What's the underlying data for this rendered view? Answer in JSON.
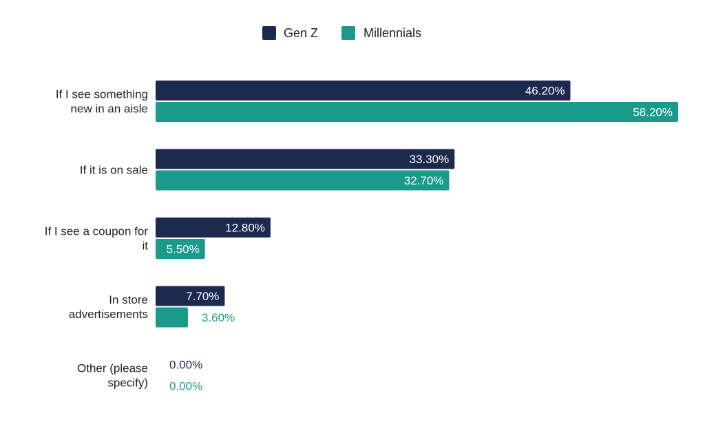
{
  "chart_data": {
    "type": "bar",
    "orientation": "horizontal",
    "categories": [
      [
        "If I see something",
        "new in an aisle"
      ],
      [
        "If it is on sale"
      ],
      [
        "If I see a coupon for",
        "it"
      ],
      [
        "In store",
        "advertisements"
      ],
      [
        "Other (please",
        "specify)"
      ]
    ],
    "series": [
      {
        "name": "Gen Z",
        "color": "#1b2a4e",
        "values": [
          46.2,
          33.3,
          12.8,
          7.7,
          0.0
        ],
        "labels": [
          "46.20%",
          "33.30%",
          "12.80%",
          "7.70%",
          "0.00%"
        ]
      },
      {
        "name": "Millennials",
        "color": "#1a9a8a",
        "values": [
          58.2,
          32.7,
          5.5,
          3.6,
          0.0
        ],
        "labels": [
          "58.20%",
          "32.70%",
          "5.50%",
          "3.60%",
          "0.00%"
        ]
      }
    ],
    "xlim": [
      0,
      58.2
    ],
    "grid": false,
    "legend_position": "top-center"
  }
}
